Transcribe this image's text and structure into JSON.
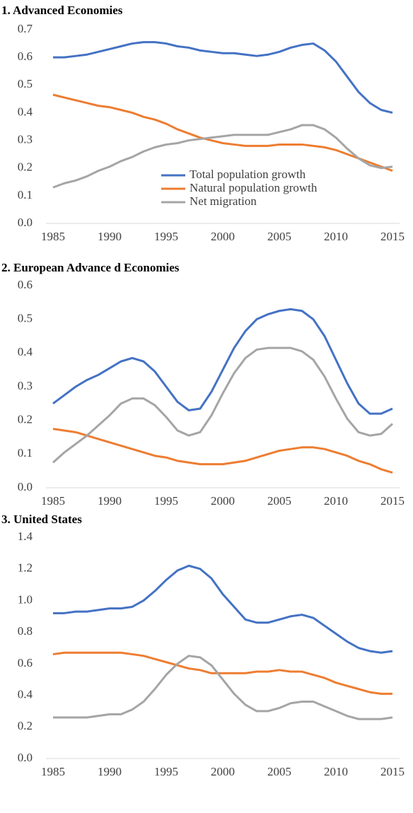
{
  "chart_data": [
    {
      "type": "line",
      "title": "1. Advanced  Economies",
      "x": [
        1985,
        1986,
        1987,
        1988,
        1989,
        1990,
        1991,
        1992,
        1993,
        1994,
        1995,
        1996,
        1997,
        1998,
        1999,
        2000,
        2001,
        2002,
        2003,
        2004,
        2005,
        2006,
        2007,
        2008,
        2009,
        2010,
        2011,
        2012,
        2013,
        2014,
        2015
      ],
      "series": [
        {
          "name": "Total population growth",
          "color": "#4472c4",
          "values": [
            0.6,
            0.6,
            0.605,
            0.61,
            0.62,
            0.63,
            0.64,
            0.65,
            0.655,
            0.655,
            0.65,
            0.64,
            0.635,
            0.625,
            0.62,
            0.615,
            0.615,
            0.61,
            0.605,
            0.61,
            0.62,
            0.635,
            0.645,
            0.65,
            0.625,
            0.585,
            0.53,
            0.475,
            0.435,
            0.41,
            0.4
          ]
        },
        {
          "name": "Natural population growth",
          "color": "#ed7d31",
          "values": [
            0.465,
            0.455,
            0.445,
            0.435,
            0.425,
            0.42,
            0.41,
            0.4,
            0.385,
            0.375,
            0.36,
            0.34,
            0.325,
            0.31,
            0.3,
            0.29,
            0.285,
            0.28,
            0.28,
            0.28,
            0.285,
            0.285,
            0.285,
            0.28,
            0.275,
            0.265,
            0.25,
            0.235,
            0.22,
            0.205,
            0.19
          ]
        },
        {
          "name": "Net migration",
          "color": "#a5a5a5",
          "values": [
            0.13,
            0.145,
            0.155,
            0.17,
            0.19,
            0.205,
            0.225,
            0.24,
            0.26,
            0.275,
            0.285,
            0.29,
            0.3,
            0.305,
            0.31,
            0.315,
            0.32,
            0.32,
            0.32,
            0.32,
            0.33,
            0.34,
            0.355,
            0.355,
            0.34,
            0.31,
            0.27,
            0.235,
            0.21,
            0.2,
            0.205
          ]
        }
      ],
      "xlim": [
        1985,
        2015
      ],
      "xticks": [
        1985,
        1990,
        1995,
        2000,
        2005,
        2010,
        2015
      ],
      "ylim": [
        0,
        0.7
      ],
      "yticks": [
        {
          "value": 0,
          "label": "0.0"
        },
        0.1,
        0.2,
        0.3,
        0.4,
        0.5,
        0.6,
        0.7
      ],
      "grid": false,
      "legend": "center"
    },
    {
      "type": "line",
      "title": "2. European  Advance d  Economies",
      "x": [
        1985,
        1986,
        1987,
        1988,
        1989,
        1990,
        1991,
        1992,
        1993,
        1994,
        1995,
        1996,
        1997,
        1998,
        1999,
        2000,
        2001,
        2002,
        2003,
        2004,
        2005,
        2006,
        2007,
        2008,
        2009,
        2010,
        2011,
        2012,
        2013,
        2014,
        2015
      ],
      "series": [
        {
          "color": "#4472c4",
          "values": [
            0.25,
            0.275,
            0.3,
            0.32,
            0.335,
            0.355,
            0.375,
            0.385,
            0.375,
            0.345,
            0.3,
            0.255,
            0.23,
            0.235,
            0.285,
            0.35,
            0.415,
            0.465,
            0.5,
            0.515,
            0.525,
            0.53,
            0.525,
            0.5,
            0.45,
            0.38,
            0.31,
            0.25,
            0.22,
            0.22,
            0.235
          ]
        },
        {
          "color": "#ed7d31",
          "values": [
            0.175,
            0.17,
            0.165,
            0.155,
            0.145,
            0.135,
            0.125,
            0.115,
            0.105,
            0.095,
            0.09,
            0.08,
            0.075,
            0.07,
            0.07,
            0.07,
            0.075,
            0.08,
            0.09,
            0.1,
            0.11,
            0.115,
            0.12,
            0.12,
            0.115,
            0.105,
            0.095,
            0.08,
            0.07,
            0.055,
            0.045
          ]
        },
        {
          "color": "#a5a5a5",
          "values": [
            0.075,
            0.105,
            0.13,
            0.155,
            0.185,
            0.215,
            0.25,
            0.265,
            0.265,
            0.245,
            0.21,
            0.17,
            0.155,
            0.165,
            0.215,
            0.28,
            0.34,
            0.385,
            0.41,
            0.415,
            0.415,
            0.415,
            0.405,
            0.38,
            0.33,
            0.265,
            0.205,
            0.165,
            0.155,
            0.16,
            0.19
          ]
        }
      ],
      "xlim": [
        1985,
        2015
      ],
      "xticks": [
        1985,
        1990,
        1995,
        2000,
        2005,
        2010,
        2015
      ],
      "ylim": [
        0,
        0.6
      ],
      "yticks": [
        {
          "value": 0,
          "label": "0.0"
        },
        0.1,
        0.2,
        0.3,
        0.4,
        0.5,
        0.6
      ],
      "grid": false
    },
    {
      "type": "line",
      "title": "3. United  States",
      "x": [
        1985,
        1986,
        1987,
        1988,
        1989,
        1990,
        1991,
        1992,
        1993,
        1994,
        1995,
        1996,
        1997,
        1998,
        1999,
        2000,
        2001,
        2002,
        2003,
        2004,
        2005,
        2006,
        2007,
        2008,
        2009,
        2010,
        2011,
        2012,
        2013,
        2014,
        2015
      ],
      "series": [
        {
          "color": "#4472c4",
          "values": [
            0.92,
            0.92,
            0.93,
            0.93,
            0.94,
            0.95,
            0.95,
            0.96,
            1.0,
            1.06,
            1.13,
            1.19,
            1.22,
            1.2,
            1.14,
            1.04,
            0.96,
            0.88,
            0.86,
            0.86,
            0.88,
            0.9,
            0.91,
            0.89,
            0.84,
            0.79,
            0.74,
            0.7,
            0.68,
            0.67,
            0.68
          ]
        },
        {
          "color": "#ed7d31",
          "values": [
            0.66,
            0.67,
            0.67,
            0.67,
            0.67,
            0.67,
            0.67,
            0.66,
            0.65,
            0.63,
            0.61,
            0.59,
            0.57,
            0.56,
            0.54,
            0.54,
            0.54,
            0.54,
            0.55,
            0.55,
            0.56,
            0.55,
            0.55,
            0.53,
            0.51,
            0.48,
            0.46,
            0.44,
            0.42,
            0.41,
            0.41
          ]
        },
        {
          "color": "#a5a5a5",
          "values": [
            0.26,
            0.26,
            0.26,
            0.26,
            0.27,
            0.28,
            0.28,
            0.31,
            0.36,
            0.44,
            0.53,
            0.6,
            0.65,
            0.64,
            0.59,
            0.5,
            0.41,
            0.34,
            0.3,
            0.3,
            0.32,
            0.35,
            0.36,
            0.36,
            0.33,
            0.3,
            0.27,
            0.25,
            0.25,
            0.25,
            0.26
          ]
        }
      ],
      "xlim": [
        1985,
        2015
      ],
      "xticks": [
        1985,
        1990,
        1995,
        2000,
        2005,
        2010,
        2015
      ],
      "ylim": [
        0,
        1.4
      ],
      "yticks": [
        {
          "value": 0,
          "label": "0.0"
        },
        0.2,
        0.4,
        0.6,
        0.8,
        {
          "value": 1,
          "label": "1.0"
        },
        1.2,
        1.4
      ],
      "grid": false
    }
  ]
}
